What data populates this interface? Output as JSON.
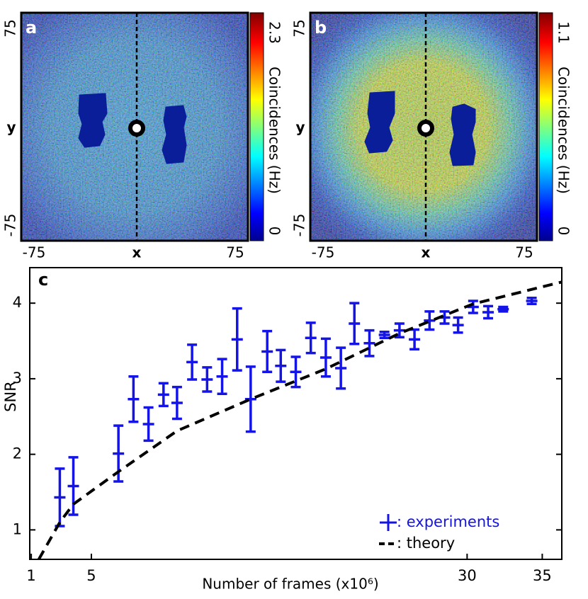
{
  "chart_data": [
    {
      "type": "heatmap",
      "title": "a",
      "xlabel": "x",
      "ylabel": "y",
      "xlim": [
        -75,
        75
      ],
      "xticks": [
        -75,
        75
      ],
      "ylim": [
        -75,
        75
      ],
      "yticks": [
        -75,
        75
      ],
      "colorbar": {
        "label": "Coincidences (Hz)",
        "lim": [
          0,
          2.3
        ],
        "ticks": [
          0,
          2.3
        ]
      },
      "style": "sparse"
    },
    {
      "type": "heatmap",
      "title": "b",
      "xlabel": "x",
      "ylabel": "y",
      "xlim": [
        -75,
        75
      ],
      "xticks": [
        -75,
        75
      ],
      "ylim": [
        -75,
        75
      ],
      "yticks": [
        -75,
        75
      ],
      "colorbar": {
        "label": "Coincidences (Hz)",
        "lim": [
          0,
          1.1
        ],
        "ticks": [
          0,
          1.1
        ]
      },
      "style": "bright"
    },
    {
      "type": "errorbar",
      "title": "c",
      "xlabel": "Number of frames (x10⁶)",
      "ylabel": "SNR",
      "xlim": [
        0.9,
        36.3
      ],
      "xticks": [
        1,
        5,
        30,
        35
      ],
      "ylim": [
        0.61,
        4.47
      ],
      "yticks": [
        1,
        2,
        3,
        4
      ],
      "legend": "lower right",
      "series": [
        {
          "name": ": experiments",
          "color": "#1414e6",
          "style": "errorbar",
          "x": [
            2.9,
            3.8,
            6.8,
            7.8,
            8.8,
            9.8,
            10.7,
            11.7,
            12.7,
            13.7,
            14.7,
            15.6,
            16.7,
            17.6,
            18.6,
            19.6,
            20.6,
            21.6,
            22.5,
            23.5,
            24.5,
            25.5,
            26.5,
            27.5,
            28.5,
            29.4,
            30.4,
            31.4,
            32.4,
            34.3
          ],
          "values": [
            1.43,
            1.58,
            2.01,
            2.73,
            2.4,
            2.79,
            2.68,
            3.22,
            2.99,
            3.03,
            3.52,
            2.73,
            3.36,
            3.17,
            3.09,
            3.54,
            3.28,
            3.14,
            3.73,
            3.47,
            3.58,
            3.64,
            3.52,
            3.77,
            3.81,
            3.71,
            3.95,
            3.88,
            3.92,
            4.03
          ],
          "errors": [
            0.38,
            0.38,
            0.37,
            0.3,
            0.22,
            0.15,
            0.21,
            0.23,
            0.16,
            0.23,
            0.41,
            0.43,
            0.27,
            0.21,
            0.2,
            0.2,
            0.25,
            0.27,
            0.27,
            0.17,
            0.04,
            0.09,
            0.13,
            0.12,
            0.08,
            0.1,
            0.08,
            0.08,
            0.03,
            0.04
          ]
        },
        {
          "name": ": theory",
          "color": "#000000",
          "style": "dashed",
          "x": [
            1.5,
            2.9,
            3.8,
            6.8,
            10.7,
            15.6,
            20.6,
            25.5,
            30.4,
            36.3
          ],
          "values": [
            0.61,
            1.1,
            1.34,
            1.77,
            2.31,
            2.73,
            3.13,
            3.6,
            3.99,
            4.28
          ]
        }
      ]
    }
  ]
}
